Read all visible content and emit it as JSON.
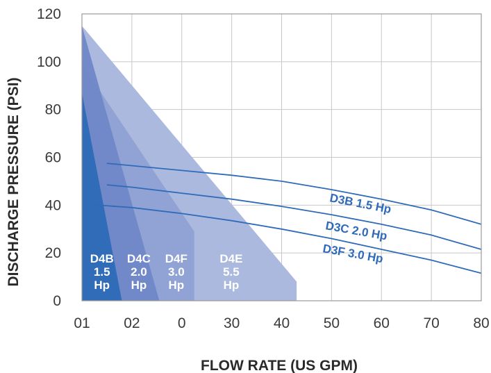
{
  "chart_data": {
    "type": "area",
    "title": "",
    "xlabel": "FLOW RATE (US GPM)",
    "ylabel": "DISCHARGE PRESSURE (PSI)",
    "xlim": [
      0,
      80
    ],
    "ylim": [
      0,
      120
    ],
    "x_tick_labels": [
      "01",
      "02",
      "0",
      "30",
      "40",
      "50",
      "60",
      "70",
      "80"
    ],
    "y_tick_labels": [
      "0",
      "20",
      "40",
      "60",
      "80",
      "100",
      "120"
    ],
    "grid": true,
    "regions": [
      {
        "name": "D4E 5.5 Hp",
        "label_lines": [
          "D4E",
          "5.5",
          "Hp"
        ],
        "color": "#a9b7dd",
        "points": [
          [
            0,
            115
          ],
          [
            43,
            8
          ],
          [
            43,
            0
          ],
          [
            0,
            0
          ]
        ]
      },
      {
        "name": "D4F 3.0 Hp",
        "label_lines": [
          "D4F",
          "3.0",
          "Hp"
        ],
        "color": "#8fa2d4",
        "points": [
          [
            0,
            99
          ],
          [
            22.5,
            29
          ],
          [
            22.5,
            0
          ],
          [
            0,
            0
          ]
        ]
      },
      {
        "name": "D4C 2.0 Hp",
        "label_lines": [
          "D4C",
          "2.0",
          "Hp"
        ],
        "color": "#6f88c8",
        "points": [
          [
            0,
            115
          ],
          [
            15.5,
            0
          ],
          [
            0,
            0
          ]
        ]
      },
      {
        "name": "D4B 1.5 Hp",
        "label_lines": [
          "D4B",
          "1.5",
          "Hp"
        ],
        "color": "#2f6bb8",
        "points": [
          [
            0,
            87
          ],
          [
            8,
            0
          ],
          [
            0,
            0
          ]
        ]
      }
    ],
    "series": [
      {
        "name": "D3B 1.5 Hp",
        "color": "#2f6bb8",
        "x": [
          5,
          10,
          20,
          30,
          40,
          50,
          60,
          70,
          80
        ],
        "y": [
          57.5,
          56.5,
          54.5,
          52.5,
          50,
          46.5,
          42.5,
          38,
          32
        ]
      },
      {
        "name": "D3C 2.0 Hp",
        "color": "#2f6bb8",
        "x": [
          5,
          10,
          20,
          30,
          40,
          50,
          60,
          70,
          80
        ],
        "y": [
          48.5,
          47.5,
          45,
          42.5,
          39.5,
          36,
          32,
          27.5,
          21.5
        ]
      },
      {
        "name": "D3F 3.0 Hp",
        "color": "#2f6bb8",
        "x": [
          0,
          10,
          20,
          30,
          40,
          50,
          60,
          70,
          80
        ],
        "y": [
          40.5,
          39,
          36.5,
          33.5,
          30,
          26,
          21.5,
          17,
          11.5
        ]
      }
    ]
  }
}
